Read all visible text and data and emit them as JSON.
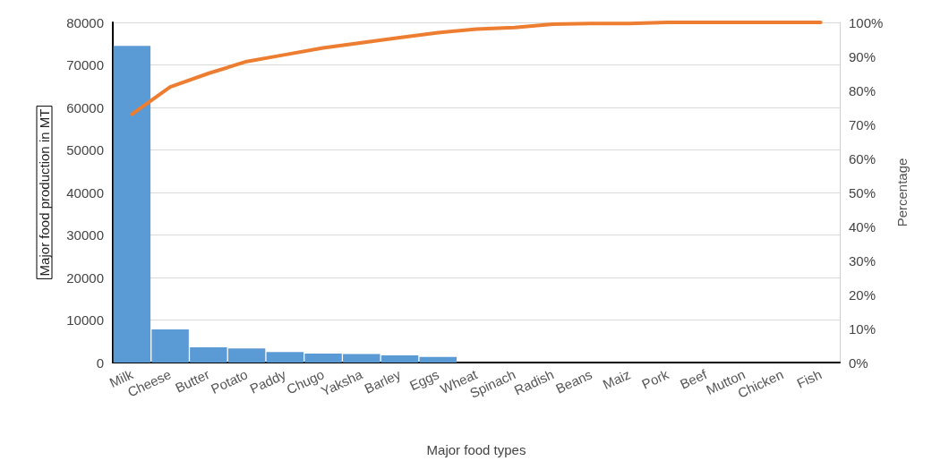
{
  "chart_data": {
    "type": "bar",
    "xlabel": "Major food types",
    "ylabel": "Major food production in MT",
    "y2label": "Percentage",
    "categories": [
      "Milk",
      "Cheese",
      "Butter",
      "Potato",
      "Paddy",
      "Chugo",
      "Yaksha",
      "Barley",
      "Eggs",
      "Wheat",
      "Spinach",
      "Radish",
      "Beans",
      "Maiz",
      "Pork",
      "Beef",
      "Mutton",
      "Chicken",
      "Fish"
    ],
    "series": [
      {
        "color": "#5b9bd5",
        "values": [
          74500,
          7800,
          3600,
          3300,
          2500,
          2100,
          2000,
          1700,
          1300,
          0,
          0,
          0,
          0,
          0,
          0,
          0,
          0,
          0,
          0
        ]
      },
      {
        "type": "line",
        "axis": "y2",
        "color": "#ed7d31",
        "values": [
          73,
          81,
          85,
          88.5,
          90.5,
          92.5,
          94,
          95.5,
          97,
          98,
          98.5,
          99.5,
          99.7,
          99.7,
          100,
          100,
          100,
          100,
          100
        ]
      }
    ],
    "ylim": [
      0,
      80000
    ],
    "yticks": [
      0,
      10000,
      20000,
      30000,
      40000,
      50000,
      60000,
      70000,
      80000
    ],
    "y2lim": [
      0,
      100
    ],
    "y2ticks": [
      {
        "value": 0,
        "label": "0%"
      },
      {
        "value": 10,
        "label": "10%"
      },
      {
        "value": 20,
        "label": "20%"
      },
      {
        "value": 30,
        "label": "30%"
      },
      {
        "value": 40,
        "label": "40%"
      },
      {
        "value": 50,
        "label": "50%"
      },
      {
        "value": 60,
        "label": "60%"
      },
      {
        "value": 70,
        "label": "70%"
      },
      {
        "value": 80,
        "label": "80%"
      },
      {
        "value": 90,
        "label": "90%"
      },
      {
        "value": 100,
        "label": "100%"
      }
    ],
    "grid": "y",
    "marker": "none"
  }
}
